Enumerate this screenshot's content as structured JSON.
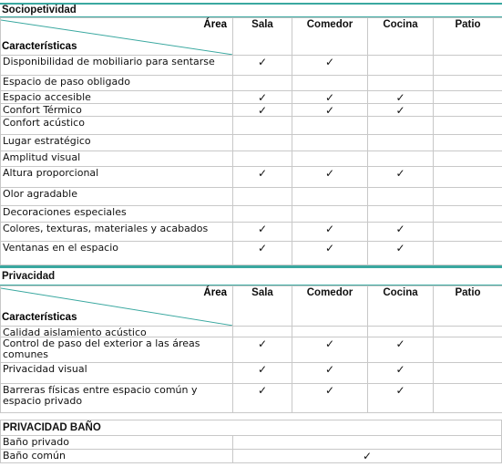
{
  "sections": [
    {
      "title": "Sociopetividad",
      "header": {
        "area": "Área",
        "characteristics": "Características",
        "columns": [
          "Sala",
          "Comedor",
          "Cocina",
          "Patio"
        ]
      },
      "rows": [
        {
          "label": "Disponibilidad de mobiliario para sentarse",
          "cells": [
            "✓",
            "✓",
            null,
            null
          ]
        },
        {
          "label": "Espacio de paso obligado",
          "cells": [
            null,
            null,
            null,
            null
          ]
        },
        {
          "label": "Espacio accesible",
          "cells": [
            "✓",
            "✓",
            "✓",
            null
          ]
        },
        {
          "label": "Confort Térmico",
          "cells": [
            "✓",
            "✓",
            "✓",
            null
          ]
        },
        {
          "label": "Confort acústico",
          "cells": [
            null,
            null,
            null,
            null
          ]
        },
        {
          "label": "Lugar estratégico",
          "cells": [
            null,
            null,
            null,
            null
          ]
        },
        {
          "label": "Amplitud visual",
          "cells": [
            null,
            null,
            null,
            null
          ]
        },
        {
          "label": "Altura proporcional",
          "cells": [
            "✓",
            "✓",
            "✓",
            null
          ]
        },
        {
          "label": "Olor agradable",
          "cells": [
            null,
            null,
            null,
            null
          ]
        },
        {
          "label": "Decoraciones especiales",
          "cells": [
            null,
            null,
            null,
            null
          ]
        },
        {
          "label": "Colores, texturas, materiales y acabados",
          "cells": [
            "✓",
            "✓",
            "✓",
            null
          ]
        },
        {
          "label": "Ventanas en el espacio",
          "cells": [
            "✓",
            "✓",
            "✓",
            null
          ]
        }
      ]
    },
    {
      "title": "Privacidad",
      "header": {
        "area": "Área",
        "characteristics": "Características",
        "columns": [
          "Sala",
          "Comedor",
          "Cocina",
          "Patio"
        ]
      },
      "rows": [
        {
          "label": "Calidad aislamiento acústico",
          "cells": [
            null,
            null,
            null,
            null
          ]
        },
        {
          "label": "Control de paso del exterior a las áreas comunes",
          "cells": [
            "✓",
            "✓",
            "✓",
            null
          ]
        },
        {
          "label": "Privacidad visual",
          "cells": [
            "✓",
            "✓",
            "✓",
            null
          ]
        },
        {
          "label": "Barreras físicas entre espacio común y espacio privado",
          "cells": [
            "✓",
            "✓",
            "✓",
            null
          ]
        }
      ]
    }
  ],
  "bath": {
    "title": "PRIVACIDAD BAÑO",
    "rows": [
      {
        "label": "Baño privado",
        "value": null
      },
      {
        "label": "Baño común",
        "value": "✓"
      }
    ]
  }
}
